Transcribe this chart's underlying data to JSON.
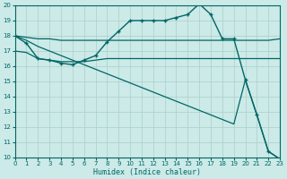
{
  "xlabel": "Humidex (Indice chaleur)",
  "xlim": [
    0,
    23
  ],
  "ylim": [
    10,
    20
  ],
  "xticks": [
    0,
    1,
    2,
    3,
    4,
    5,
    6,
    7,
    8,
    9,
    10,
    11,
    12,
    13,
    14,
    15,
    16,
    17,
    18,
    19,
    20,
    21,
    22,
    23
  ],
  "yticks": [
    10,
    11,
    12,
    13,
    14,
    15,
    16,
    17,
    18,
    19,
    20
  ],
  "bg_color": "#cceae7",
  "grid_color": "#aacfcc",
  "line_color": "#006666",
  "lines": [
    {
      "x": [
        0,
        1,
        2,
        3,
        4,
        5,
        6,
        7,
        8,
        9,
        10,
        11,
        12,
        13,
        14,
        15,
        16,
        17,
        18,
        19,
        20,
        21,
        22,
        23
      ],
      "y": [
        18.0,
        17.5,
        16.5,
        16.4,
        16.2,
        16.1,
        16.4,
        16.7,
        17.6,
        18.3,
        19.0,
        19.0,
        19.0,
        19.0,
        19.2,
        19.4,
        20.1,
        19.4,
        17.8,
        17.8,
        15.1,
        12.8,
        10.4,
        9.9
      ],
      "marker": "+",
      "markersize": 3.5,
      "linewidth": 1.0
    },
    {
      "x": [
        0,
        1,
        2,
        3,
        4,
        5,
        6,
        7,
        8,
        9,
        10,
        11,
        12,
        13,
        14,
        15,
        16,
        17,
        18,
        19,
        20,
        21,
        22,
        23
      ],
      "y": [
        18.0,
        17.9,
        17.8,
        17.8,
        17.7,
        17.7,
        17.7,
        17.7,
        17.7,
        17.7,
        17.7,
        17.7,
        17.7,
        17.7,
        17.7,
        17.7,
        17.7,
        17.7,
        17.7,
        17.7,
        17.7,
        17.7,
        17.7,
        17.8
      ],
      "marker": null,
      "markersize": 0,
      "linewidth": 0.9
    },
    {
      "x": [
        0,
        1,
        2,
        3,
        4,
        5,
        6,
        7,
        8,
        9,
        10,
        11,
        12,
        13,
        14,
        15,
        16,
        17,
        18,
        19,
        20,
        21,
        22,
        23
      ],
      "y": [
        17.0,
        16.9,
        16.5,
        16.4,
        16.3,
        16.3,
        16.3,
        16.4,
        16.5,
        16.5,
        16.5,
        16.5,
        16.5,
        16.5,
        16.5,
        16.5,
        16.5,
        16.5,
        16.5,
        16.5,
        16.5,
        16.5,
        16.5,
        16.5
      ],
      "marker": null,
      "markersize": 0,
      "linewidth": 0.9
    },
    {
      "x": [
        0,
        1,
        2,
        3,
        4,
        5,
        6,
        7,
        8,
        9,
        10,
        11,
        12,
        13,
        14,
        15,
        16,
        17,
        18,
        19,
        20,
        21,
        22,
        23
      ],
      "y": [
        18.0,
        17.7,
        17.3,
        17.0,
        16.7,
        16.4,
        16.1,
        15.8,
        15.5,
        15.2,
        14.9,
        14.6,
        14.3,
        14.0,
        13.7,
        13.4,
        13.1,
        12.8,
        12.5,
        12.2,
        15.1,
        12.8,
        10.4,
        9.9
      ],
      "marker": null,
      "markersize": 0,
      "linewidth": 0.9
    }
  ]
}
